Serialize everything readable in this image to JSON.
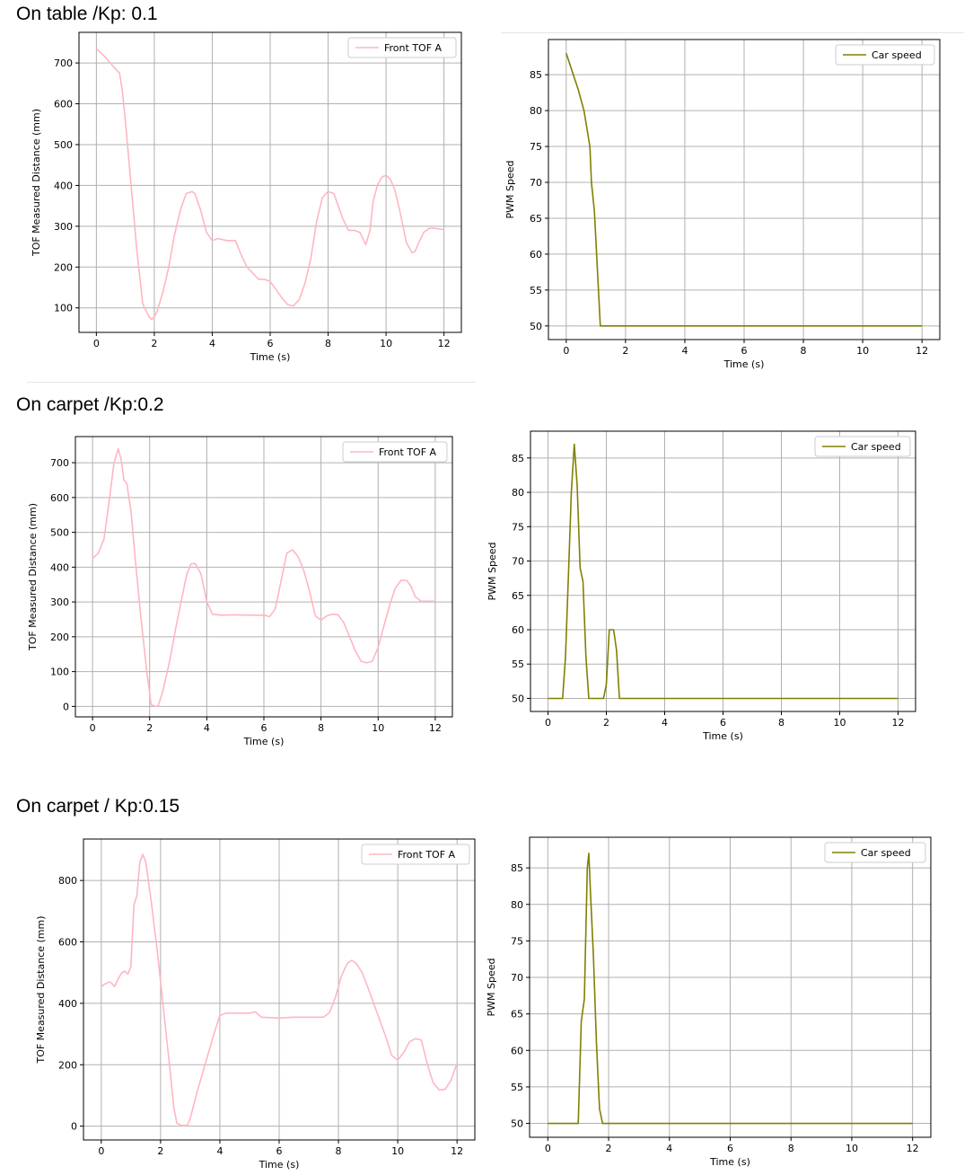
{
  "captions": [
    "On table /Kp: 0.1",
    "On carpet /Kp:0.2",
    "On carpet / Kp:0.15"
  ],
  "colors": {
    "tof": "#ffb6c1",
    "speed": "#808000",
    "grid": "#b0b0b0"
  },
  "chart_data": [
    {
      "type": "line",
      "xlabel": "Time  (s)",
      "ylabel": "TOF Measured Distance (mm)",
      "xlim": [
        -0.6,
        12.6
      ],
      "ylim": [
        40,
        775
      ],
      "xticks": [
        0,
        2,
        4,
        6,
        8,
        10,
        12
      ],
      "yticks": [
        100,
        200,
        300,
        400,
        500,
        600,
        700
      ],
      "grid": true,
      "legend": "top-right",
      "series": [
        {
          "name": "Front TOF A",
          "x": [
            0,
            0.3,
            0.6,
            0.8,
            0.9,
            1.0,
            1.2,
            1.4,
            1.6,
            1.8,
            1.9,
            2.0,
            2.1,
            2.3,
            2.5,
            2.7,
            2.9,
            3.1,
            3.3,
            3.4,
            3.6,
            3.8,
            4.0,
            4.2,
            4.5,
            4.8,
            5.0,
            5.2,
            5.4,
            5.6,
            5.8,
            6.0,
            6.2,
            6.4,
            6.6,
            6.8,
            7.0,
            7.2,
            7.4,
            7.6,
            7.8,
            8.0,
            8.2,
            8.3,
            8.5,
            8.7,
            8.9,
            9.1,
            9.3,
            9.45,
            9.55,
            9.7,
            9.85,
            10.0,
            10.15,
            10.3,
            10.5,
            10.7,
            10.9,
            11.0,
            11.1,
            11.3,
            11.5,
            11.7,
            11.85,
            12.0
          ],
          "y": [
            735,
            715,
            690,
            675,
            630,
            560,
            400,
            240,
            110,
            80,
            72,
            78,
            92,
            140,
            200,
            280,
            340,
            380,
            385,
            380,
            340,
            285,
            265,
            270,
            265,
            265,
            230,
            200,
            185,
            170,
            170,
            165,
            145,
            125,
            108,
            105,
            120,
            160,
            220,
            310,
            370,
            385,
            380,
            360,
            320,
            290,
            290,
            285,
            255,
            290,
            360,
            400,
            420,
            425,
            415,
            390,
            330,
            260,
            235,
            238,
            255,
            285,
            295,
            295,
            293,
            292
          ]
        }
      ]
    },
    {
      "type": "line",
      "xlabel": "Time (s)",
      "ylabel": "PWM Speed",
      "xlim": [
        -0.6,
        12.6
      ],
      "ylim": [
        48.1,
        89.9
      ],
      "xticks": [
        0,
        2,
        4,
        6,
        8,
        10,
        12
      ],
      "yticks": [
        50,
        55,
        60,
        65,
        70,
        75,
        80,
        85
      ],
      "grid": true,
      "legend": "top-right",
      "series": [
        {
          "name": "Car speed",
          "x": [
            0,
            0.4,
            0.6,
            0.8,
            0.85,
            0.95,
            1.05,
            1.15,
            12.0
          ],
          "y": [
            88,
            83,
            80,
            75,
            70,
            66,
            58,
            50,
            50
          ]
        }
      ]
    },
    {
      "type": "line",
      "xlabel": "Time  (s)",
      "ylabel": "TOF Measured Distance (mm)",
      "xlim": [
        -0.6,
        12.6
      ],
      "ylim": [
        -30,
        775
      ],
      "xticks": [
        0,
        2,
        4,
        6,
        8,
        10,
        12
      ],
      "yticks": [
        0,
        100,
        200,
        300,
        400,
        500,
        600,
        700
      ],
      "grid": true,
      "legend": "top-right",
      "series": [
        {
          "name": "Front TOF A",
          "x": [
            0,
            0.2,
            0.4,
            0.6,
            0.75,
            0.9,
            1.0,
            1.1,
            1.2,
            1.35,
            1.5,
            1.7,
            1.9,
            2.0,
            2.05,
            2.2,
            2.3,
            2.45,
            2.7,
            2.9,
            3.1,
            3.3,
            3.45,
            3.6,
            3.8,
            4.0,
            4.2,
            4.5,
            5.0,
            5.5,
            6.0,
            6.2,
            6.4,
            6.6,
            6.8,
            7.0,
            7.2,
            7.4,
            7.6,
            7.8,
            8.0,
            8.2,
            8.4,
            8.6,
            8.8,
            9.0,
            9.2,
            9.4,
            9.6,
            9.8,
            10.0,
            10.2,
            10.4,
            10.6,
            10.8,
            11.0,
            11.15,
            11.3,
            11.5,
            11.7,
            12.0
          ],
          "y": [
            425,
            440,
            480,
            600,
            700,
            740,
            710,
            650,
            640,
            560,
            420,
            250,
            100,
            40,
            5,
            0,
            2,
            40,
            130,
            220,
            300,
            380,
            410,
            410,
            380,
            300,
            265,
            262,
            263,
            262,
            262,
            258,
            280,
            360,
            440,
            450,
            430,
            390,
            330,
            260,
            248,
            260,
            265,
            263,
            240,
            200,
            160,
            130,
            125,
            130,
            170,
            230,
            290,
            340,
            362,
            362,
            345,
            315,
            302,
            302,
            302
          ]
        }
      ]
    },
    {
      "type": "line",
      "xlabel": "Time (s)",
      "ylabel": "PWM Speed",
      "xlim": [
        -0.6,
        12.6
      ],
      "ylim": [
        48.1,
        88.9
      ],
      "xticks": [
        0,
        2,
        4,
        6,
        8,
        10,
        12
      ],
      "yticks": [
        50,
        55,
        60,
        65,
        70,
        75,
        80,
        85
      ],
      "grid": true,
      "legend": "top-right",
      "series": [
        {
          "name": "Car speed",
          "x": [
            0,
            0.5,
            0.6,
            0.7,
            0.8,
            0.9,
            1.0,
            1.1,
            1.2,
            1.3,
            1.4,
            1.5,
            1.9,
            2.0,
            2.1,
            2.25,
            2.35,
            2.45,
            12.0
          ],
          "y": [
            50,
            50,
            56,
            68,
            80,
            87,
            81,
            69,
            67,
            56,
            50,
            50,
            50,
            52,
            60,
            60,
            57,
            50,
            50
          ]
        }
      ]
    },
    {
      "type": "line",
      "xlabel": "Time  (s)",
      "ylabel": "TOF Measured Distance (mm)",
      "xlim": [
        -0.6,
        12.6
      ],
      "ylim": [
        -45,
        935
      ],
      "xticks": [
        0,
        2,
        4,
        6,
        8,
        10,
        12
      ],
      "yticks": [
        0,
        200,
        400,
        600,
        800
      ],
      "grid": true,
      "legend": "top-right",
      "series": [
        {
          "name": "Front TOF A",
          "x": [
            0,
            0.15,
            0.3,
            0.45,
            0.6,
            0.7,
            0.8,
            0.9,
            1.0,
            1.1,
            1.2,
            1.3,
            1.4,
            1.5,
            1.7,
            1.9,
            2.1,
            2.3,
            2.45,
            2.55,
            2.7,
            2.9,
            3.0,
            3.2,
            3.5,
            3.8,
            4.0,
            4.2,
            4.5,
            5.0,
            5.2,
            5.4,
            6.0,
            6.5,
            7.0,
            7.5,
            7.7,
            7.9,
            8.1,
            8.3,
            8.45,
            8.6,
            8.8,
            9.0,
            9.3,
            9.6,
            9.8,
            10.0,
            10.2,
            10.4,
            10.6,
            10.8,
            11.0,
            11.2,
            11.4,
            11.6,
            11.8,
            12.0
          ],
          "y": [
            455,
            465,
            470,
            455,
            485,
            500,
            505,
            495,
            520,
            720,
            750,
            860,
            885,
            860,
            720,
            560,
            380,
            200,
            60,
            10,
            2,
            2,
            25,
            100,
            200,
            300,
            360,
            368,
            368,
            368,
            372,
            355,
            352,
            355,
            355,
            355,
            370,
            420,
            490,
            530,
            540,
            530,
            500,
            450,
            370,
            290,
            230,
            215,
            240,
            275,
            285,
            280,
            200,
            140,
            118,
            120,
            150,
            205
          ]
        }
      ]
    },
    {
      "type": "line",
      "xlabel": "Time (s)",
      "ylabel": "PWM Speed",
      "xlim": [
        -0.6,
        12.6
      ],
      "ylim": [
        48.1,
        89.2
      ],
      "xticks": [
        0,
        2,
        4,
        6,
        8,
        10,
        12
      ],
      "yticks": [
        50,
        55,
        60,
        65,
        70,
        75,
        80,
        85
      ],
      "grid": true,
      "legend": "top-right",
      "series": [
        {
          "name": "Car speed",
          "x": [
            0,
            1.0,
            1.1,
            1.2,
            1.3,
            1.35,
            1.4,
            1.5,
            1.6,
            1.7,
            1.8,
            1.9,
            12.0
          ],
          "y": [
            50,
            50,
            64,
            67,
            85,
            87,
            82,
            73,
            61,
            52,
            50,
            50,
            50
          ]
        }
      ]
    }
  ]
}
